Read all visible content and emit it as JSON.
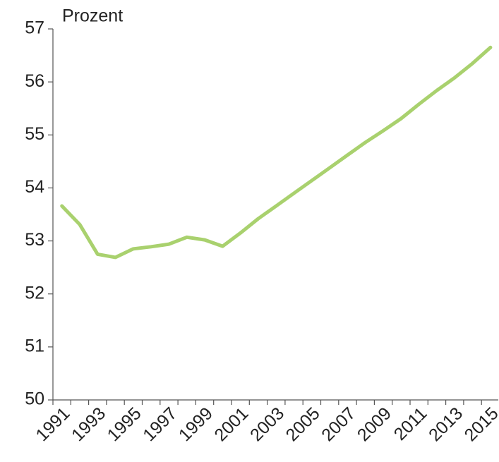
{
  "chart_data": {
    "type": "line",
    "y_label": "Prozent",
    "categories": [
      "1991",
      null,
      "1993",
      null,
      "1995",
      null,
      "1997",
      null,
      "1999",
      null,
      "2001",
      null,
      "2003",
      null,
      "2005",
      null,
      "2007",
      null,
      "2009",
      null,
      "2011",
      null,
      "2013",
      null,
      "2015"
    ],
    "series": [
      {
        "name": "Prozent",
        "color": "#a9d16e",
        "values": [
          53.66,
          53.31,
          52.75,
          52.69,
          52.85,
          52.89,
          52.94,
          53.07,
          53.02,
          52.9,
          53.15,
          53.42,
          53.66,
          53.9,
          54.14,
          54.38,
          54.62,
          54.86,
          55.08,
          55.31,
          55.58,
          55.84,
          56.08,
          56.35,
          56.65
        ]
      }
    ],
    "ylim": [
      50,
      57
    ],
    "yticks": [
      50,
      51,
      52,
      53,
      54,
      55,
      56,
      57
    ],
    "grid": false
  }
}
